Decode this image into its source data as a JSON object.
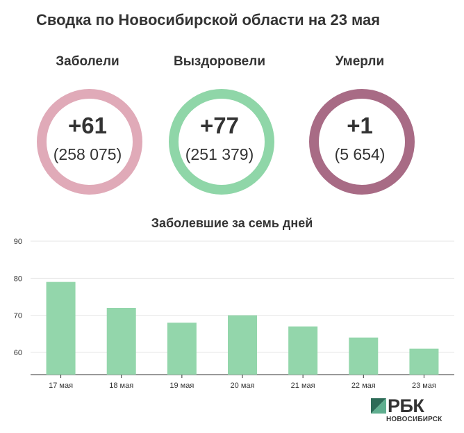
{
  "header": {
    "title": "Сводка по Новосибирской области на 23 мая"
  },
  "stats": [
    {
      "label": "Заболели",
      "delta": "+61",
      "total": "(258 075)",
      "color": "#e0aab8"
    },
    {
      "label": "Выздоровели",
      "delta": "+77",
      "total": "(251 379)",
      "color": "#8fd6a8"
    },
    {
      "label": "Умерли",
      "delta": "+1",
      "total": "(5 654)",
      "color": "#a86b85"
    }
  ],
  "chart_data": {
    "type": "bar",
    "title": "Заболевшие за семь дней",
    "categories": [
      "17 мая",
      "18 мая",
      "19 мая",
      "20 мая",
      "21 мая",
      "22 мая",
      "23 мая"
    ],
    "values": [
      79,
      72,
      68,
      70,
      67,
      64,
      61
    ],
    "ylim": [
      54,
      90
    ],
    "yticks": [
      60,
      70,
      80,
      90
    ],
    "grid": true,
    "bar_color": "#93d6ab",
    "xlabel": "",
    "ylabel": ""
  },
  "logo": {
    "brand": "РБК",
    "sub": "НОВОСИБИРСК"
  }
}
